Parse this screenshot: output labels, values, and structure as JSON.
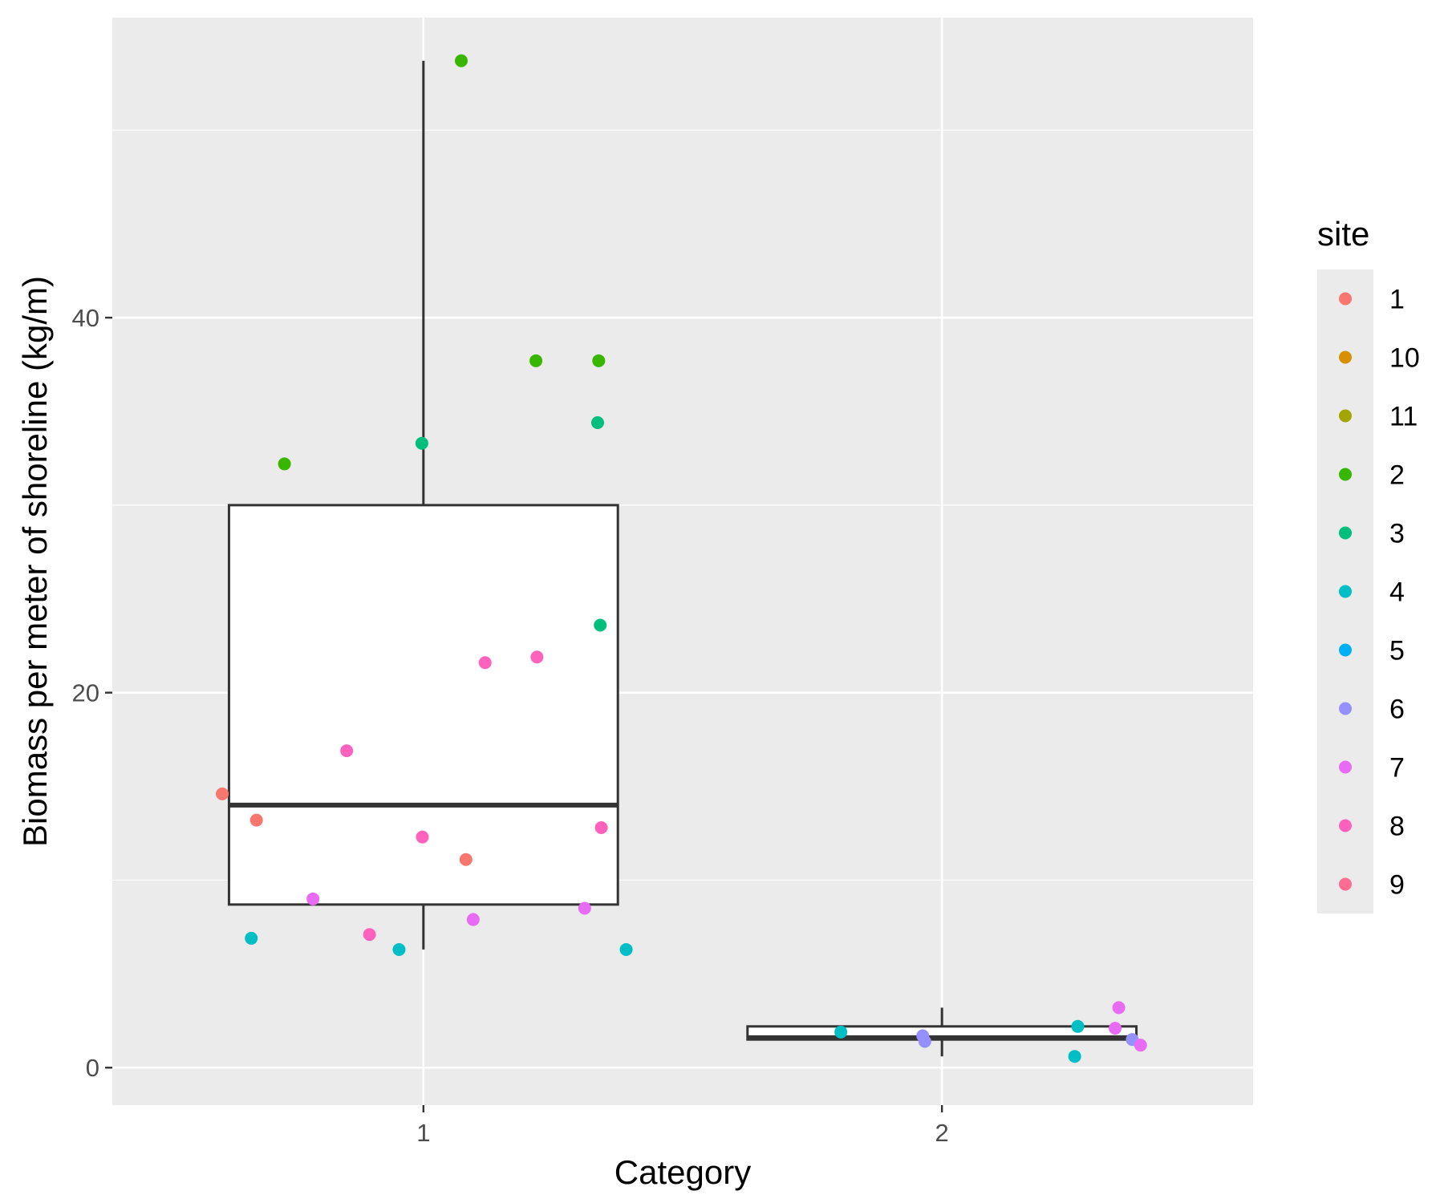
{
  "chart_data": {
    "type": "box",
    "xlabel": "Category",
    "ylabel": "Biomass per meter of shoreline (kg/m)",
    "categories": [
      "1",
      "2"
    ],
    "ylim": [
      -2,
      56
    ],
    "y_ticks": [
      0,
      20,
      40
    ],
    "y_tick_labels": [
      "0",
      "20",
      "40"
    ],
    "grid": true,
    "legend": {
      "title": "site",
      "placement": "right",
      "entries": [
        {
          "label": "1",
          "color": "#F8766D"
        },
        {
          "label": "10",
          "color": "#D89000"
        },
        {
          "label": "11",
          "color": "#A3A500"
        },
        {
          "label": "2",
          "color": "#39B600"
        },
        {
          "label": "3",
          "color": "#00BF7D"
        },
        {
          "label": "4",
          "color": "#00BFC4"
        },
        {
          "label": "5",
          "color": "#00B0F6"
        },
        {
          "label": "6",
          "color": "#9590FF"
        },
        {
          "label": "7",
          "color": "#E76BF3"
        },
        {
          "label": "8",
          "color": "#FF62BC"
        },
        {
          "label": "9",
          "color": "#FF6C91"
        }
      ]
    },
    "boxes": [
      {
        "category": "1",
        "whisker_low": 6.3,
        "q1": 8.7,
        "median": 14.0,
        "q3": 30.0,
        "whisker_high": 53.7
      },
      {
        "category": "2",
        "whisker_low": 0.6,
        "q1": 1.5,
        "median": 1.6,
        "q3": 2.2,
        "whisker_high": 3.2
      }
    ],
    "points": [
      {
        "category": "1",
        "x": 0.612,
        "y": 14.6,
        "site": "1"
      },
      {
        "category": "1",
        "x": 0.678,
        "y": 13.2,
        "site": "1"
      },
      {
        "category": "1",
        "x": 1.082,
        "y": 11.1,
        "site": "1"
      },
      {
        "category": "1",
        "x": 0.732,
        "y": 32.2,
        "site": "2"
      },
      {
        "category": "1",
        "x": 1.073,
        "y": 53.7,
        "site": "2"
      },
      {
        "category": "1",
        "x": 1.217,
        "y": 37.7,
        "site": "2"
      },
      {
        "category": "1",
        "x": 1.338,
        "y": 37.7,
        "site": "2"
      },
      {
        "category": "1",
        "x": 0.997,
        "y": 33.3,
        "site": "3"
      },
      {
        "category": "1",
        "x": 1.336,
        "y": 34.4,
        "site": "3"
      },
      {
        "category": "1",
        "x": 1.341,
        "y": 23.6,
        "site": "3"
      },
      {
        "category": "1",
        "x": 0.668,
        "y": 6.9,
        "site": "4"
      },
      {
        "category": "1",
        "x": 0.953,
        "y": 6.3,
        "site": "4"
      },
      {
        "category": "1",
        "x": 1.391,
        "y": 6.3,
        "site": "4"
      },
      {
        "category": "1",
        "x": 0.787,
        "y": 9.0,
        "site": "7"
      },
      {
        "category": "1",
        "x": 1.096,
        "y": 7.9,
        "site": "7"
      },
      {
        "category": "1",
        "x": 1.311,
        "y": 8.5,
        "site": "7"
      },
      {
        "category": "1",
        "x": 0.852,
        "y": 16.9,
        "site": "8"
      },
      {
        "category": "1",
        "x": 0.896,
        "y": 7.1,
        "site": "8"
      },
      {
        "category": "1",
        "x": 1.119,
        "y": 21.6,
        "site": "8"
      },
      {
        "category": "1",
        "x": 1.219,
        "y": 21.9,
        "site": "8"
      },
      {
        "category": "1",
        "x": 0.998,
        "y": 12.3,
        "site": "8"
      },
      {
        "category": "1",
        "x": 1.343,
        "y": 12.8,
        "site": "8"
      },
      {
        "category": "2",
        "x": 1.805,
        "y": 1.9,
        "site": "4"
      },
      {
        "category": "2",
        "x": 2.262,
        "y": 2.2,
        "site": "4"
      },
      {
        "category": "2",
        "x": 2.256,
        "y": 0.6,
        "site": "4"
      },
      {
        "category": "2",
        "x": 1.963,
        "y": 1.7,
        "site": "6"
      },
      {
        "category": "2",
        "x": 1.967,
        "y": 1.4,
        "site": "6"
      },
      {
        "category": "2",
        "x": 2.367,
        "y": 1.5,
        "site": "6"
      },
      {
        "category": "2",
        "x": 2.341,
        "y": 3.2,
        "site": "7"
      },
      {
        "category": "2",
        "x": 2.334,
        "y": 2.1,
        "site": "7"
      },
      {
        "category": "2",
        "x": 2.383,
        "y": 1.2,
        "site": "7"
      }
    ]
  },
  "colors": {
    "panel_background": "#EBEBEB",
    "grid_major": "#FFFFFF",
    "grid_minor": "#F5F5F5",
    "box_fill": "#FFFFFF",
    "box_line": "#333333",
    "axis_tick": "#333333",
    "tick_text": "#4D4D4D"
  }
}
